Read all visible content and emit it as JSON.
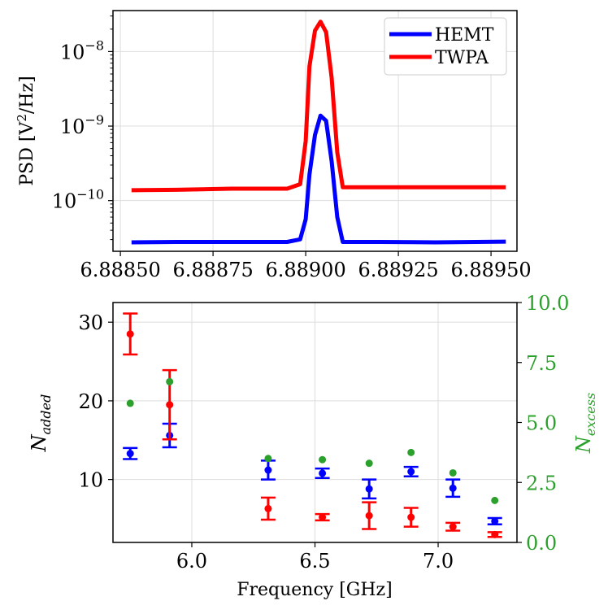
{
  "chart_data": [
    {
      "type": "line",
      "title": "",
      "xlabel": "",
      "ylabel": "PSD [V²/Hz]",
      "yscale": "log",
      "xlim": [
        6.88848,
        6.88957
      ],
      "ylim_log10": [
        -10.68,
        -7.45
      ],
      "grid": true,
      "legend_position": "top-right",
      "x_tick_values": [
        6.8885,
        6.88875,
        6.889,
        6.88925,
        6.8895
      ],
      "x_tick_labels": [
        "6.88850",
        "6.88875",
        "6.88900",
        "6.88925",
        "6.88950"
      ],
      "y_tick_exponents": [
        -8,
        -9,
        -10
      ],
      "y_tick_labels": [
        {
          "base": "10",
          "exp": "−8"
        },
        {
          "base": "10",
          "exp": "−9"
        },
        {
          "base": "10",
          "exp": "−10"
        }
      ],
      "ylabel_parts": {
        "prefix": "PSD [V",
        "sup": "2",
        "suffix": "/Hz]"
      },
      "series": [
        {
          "name": "HEMT",
          "color": "#0000ff",
          "x": [
            6.88853,
            6.88865,
            6.8888,
            6.88895,
            6.888985,
            6.889,
            6.88901,
            6.889025,
            6.88904,
            6.889055,
            6.88907,
            6.889085,
            6.8891,
            6.8892,
            6.88935,
            6.88954
          ],
          "log10_y": [
            -10.56,
            -10.555,
            -10.555,
            -10.555,
            -10.52,
            -10.25,
            -9.65,
            -9.12,
            -8.86,
            -8.93,
            -9.47,
            -10.22,
            -10.555,
            -10.555,
            -10.56,
            -10.55
          ]
        },
        {
          "name": "TWPA",
          "color": "#ff0000",
          "x": [
            6.88853,
            6.88865,
            6.8888,
            6.88895,
            6.888985,
            6.889,
            6.88901,
            6.889025,
            6.88904,
            6.889055,
            6.88907,
            6.889085,
            6.8891,
            6.8892,
            6.88935,
            6.88954
          ],
          "log10_y": [
            -9.86,
            -9.855,
            -9.84,
            -9.84,
            -9.78,
            -9.2,
            -8.2,
            -7.72,
            -7.6,
            -7.74,
            -8.35,
            -9.35,
            -9.82,
            -9.82,
            -9.82,
            -9.82
          ]
        }
      ]
    },
    {
      "type": "scatter",
      "title": "",
      "xlabel": "Frequency [GHz]",
      "ylabel": "N_added",
      "ylabel_main": "N",
      "ylabel_sub": "added",
      "y2label": "N_excess",
      "y2label_main": "N",
      "y2label_sub": "excess",
      "xlim": [
        5.68,
        7.32
      ],
      "ylim": [
        2,
        32.5
      ],
      "y2lim": [
        0,
        10
      ],
      "grid": true,
      "x_tick_values": [
        6.0,
        6.5,
        7.0
      ],
      "x_tick_labels": [
        "6.0",
        "6.5",
        "7.0"
      ],
      "y_tick_values": [
        10,
        20,
        30
      ],
      "y_tick_labels": [
        "10",
        "20",
        "30"
      ],
      "y2_tick_values": [
        0,
        2.5,
        5,
        7.5,
        10
      ],
      "y2_tick_labels": [
        "0.0",
        "2.5",
        "5.0",
        "7.5",
        "10.0"
      ],
      "y2_color": "#2ca02c",
      "series": [
        {
          "name": "HEMT N_added",
          "color": "#0000ff",
          "x": [
            5.75,
            5.91,
            6.31,
            6.53,
            6.72,
            6.89,
            7.06,
            7.23
          ],
          "y": [
            13.3,
            15.6,
            11.2,
            10.8,
            8.8,
            11.0,
            8.9,
            4.7
          ],
          "err": [
            0.7,
            1.5,
            1.2,
            0.6,
            1.2,
            0.6,
            1.1,
            0.4
          ]
        },
        {
          "name": "TWPA N_added",
          "color": "#ff0000",
          "x": [
            5.75,
            5.91,
            6.31,
            6.53,
            6.72,
            6.89,
            7.06,
            7.23
          ],
          "y": [
            28.5,
            19.5,
            6.3,
            5.2,
            5.4,
            5.2,
            4.0,
            3.0
          ],
          "err": [
            2.6,
            4.4,
            1.4,
            0.4,
            1.7,
            1.2,
            0.5,
            0.3
          ]
        },
        {
          "name": "N_excess",
          "axis": "right",
          "color": "#2ca02c",
          "x": [
            5.75,
            5.91,
            6.31,
            6.53,
            6.72,
            6.89,
            7.06,
            7.23
          ],
          "y": [
            5.8,
            6.7,
            3.5,
            3.45,
            3.3,
            3.75,
            2.9,
            1.75
          ]
        }
      ]
    }
  ]
}
